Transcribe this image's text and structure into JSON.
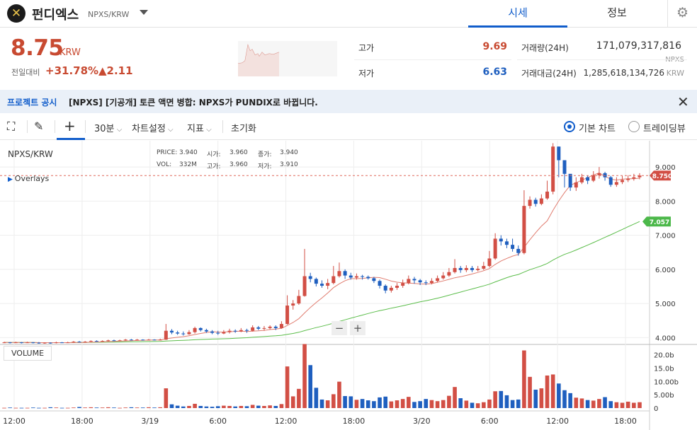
{
  "header": {
    "coin_name": "펀디엑스",
    "pair": "NPXS/KRW",
    "tabs": [
      "시세",
      "정보"
    ]
  },
  "ticker": {
    "price": "8.75",
    "unit": "KRW",
    "change_label": "전일대비",
    "change_pct": "+31.78%",
    "change_amt": "▲2.11"
  },
  "stats": {
    "high_label": "고가",
    "high": "9.69",
    "low_label": "저가",
    "low": "6.63",
    "vol_label": "거래량(24H)",
    "vol": "171,079,317,816",
    "vol_unit": "NPXS",
    "amount_label": "거래대금(24H)",
    "amount": "1,285,618,134,726",
    "amount_unit": "KRW"
  },
  "notice": {
    "head": "프로젝트 공시",
    "text": "[NPXS] [기공개] 토큰 액면 병합: NPXS가 PUNDIX로 바뀝니다."
  },
  "toolbar": {
    "interval": "30분",
    "chart_settings": "차트설정",
    "indicators": "지표",
    "reset": "초기화",
    "basic_chart": "기본 차트",
    "trading_view": "트레이딩뷰"
  },
  "colors": {
    "up": "#d24f45",
    "down": "#1f5fbf",
    "accent": "#115dcb",
    "ma_short": "#e07c6f",
    "ma_long": "#5bbd4a"
  },
  "chart_info": {
    "symbol": "NPXS/KRW",
    "overlays": "Overlays",
    "ohlc_labels": [
      "PRICE:",
      "시가:",
      "종가:",
      "VOL:",
      "고가:",
      "저가:"
    ],
    "ohlc_values": [
      "3.940",
      "3.960",
      "3.940",
      "332M",
      "3.960",
      "3.910"
    ],
    "last_price_tag": "8.750",
    "ma_tag": "7.057",
    "volume_label": "VOLUME"
  },
  "chart_data": {
    "type": "candlestick",
    "price_ticks": [
      "9.000",
      "8.000",
      "7.000",
      "6.000",
      "5.000",
      "4.000"
    ],
    "volume_ticks": [
      "20.0b",
      "15.0b",
      "10.00b",
      "5.00b",
      "0"
    ],
    "time_ticks": [
      "12:00",
      "18:00",
      "3/19",
      "6:00",
      "12:00",
      "18:00",
      "3/20",
      "6:00",
      "12:00",
      "18:00"
    ],
    "price_range": [
      3.8,
      9.75
    ],
    "volume_range": [
      0,
      22
    ],
    "candles": [
      [
        3.86,
        3.86,
        3.88,
        3.84
      ],
      [
        3.86,
        3.85,
        3.87,
        3.83
      ],
      [
        3.85,
        3.86,
        3.88,
        3.84
      ],
      [
        3.86,
        3.85,
        3.87,
        3.83
      ],
      [
        3.85,
        3.86,
        3.88,
        3.84
      ],
      [
        3.86,
        3.85,
        3.87,
        3.83
      ],
      [
        3.85,
        3.84,
        3.87,
        3.82
      ],
      [
        3.84,
        3.85,
        3.86,
        3.82
      ],
      [
        3.85,
        3.84,
        3.86,
        3.82
      ],
      [
        3.84,
        3.86,
        3.88,
        3.83
      ],
      [
        3.86,
        3.85,
        3.87,
        3.84
      ],
      [
        3.85,
        3.86,
        3.88,
        3.84
      ],
      [
        3.86,
        3.88,
        3.9,
        3.85
      ],
      [
        3.88,
        3.87,
        3.9,
        3.86
      ],
      [
        3.87,
        3.88,
        3.9,
        3.86
      ],
      [
        3.88,
        3.9,
        3.92,
        3.87
      ],
      [
        3.9,
        3.89,
        3.92,
        3.88
      ],
      [
        3.89,
        3.9,
        3.92,
        3.88
      ],
      [
        3.9,
        3.92,
        3.94,
        3.89
      ],
      [
        3.92,
        3.91,
        3.94,
        3.9
      ],
      [
        3.91,
        3.92,
        3.94,
        3.9
      ],
      [
        3.92,
        3.94,
        3.96,
        3.91
      ],
      [
        3.94,
        3.93,
        3.96,
        3.92
      ],
      [
        3.93,
        3.94,
        3.96,
        3.92
      ],
      [
        3.94,
        3.93,
        3.95,
        3.92
      ],
      [
        3.93,
        3.94,
        3.96,
        3.92
      ],
      [
        3.94,
        3.93,
        3.95,
        3.92
      ],
      [
        3.93,
        3.94,
        3.97,
        3.92
      ],
      [
        3.94,
        4.2,
        4.4,
        3.93
      ],
      [
        4.2,
        4.15,
        4.25,
        4.1
      ],
      [
        4.15,
        4.12,
        4.2,
        4.08
      ],
      [
        4.12,
        4.1,
        4.18,
        4.06
      ],
      [
        4.1,
        4.16,
        4.22,
        4.08
      ],
      [
        4.16,
        4.28,
        4.32,
        4.12
      ],
      [
        4.28,
        4.22,
        4.3,
        4.18
      ],
      [
        4.22,
        4.18,
        4.26,
        4.14
      ],
      [
        4.18,
        4.14,
        4.22,
        4.1
      ],
      [
        4.14,
        4.12,
        4.2,
        4.08
      ],
      [
        4.12,
        4.16,
        4.22,
        4.1
      ],
      [
        4.16,
        4.2,
        4.26,
        4.12
      ],
      [
        4.2,
        4.18,
        4.24,
        4.14
      ],
      [
        4.18,
        4.22,
        4.28,
        4.16
      ],
      [
        4.22,
        4.2,
        4.26,
        4.14
      ],
      [
        4.2,
        4.3,
        4.36,
        4.18
      ],
      [
        4.3,
        4.26,
        4.34,
        4.22
      ],
      [
        4.26,
        4.28,
        4.34,
        4.2
      ],
      [
        4.28,
        4.32,
        4.36,
        4.24
      ],
      [
        4.32,
        4.28,
        4.36,
        4.22
      ],
      [
        4.28,
        4.4,
        4.48,
        4.26
      ],
      [
        4.4,
        4.94,
        5.24,
        4.38
      ],
      [
        4.94,
        5.0,
        5.1,
        4.82
      ],
      [
        5.0,
        5.22,
        5.4,
        4.96
      ],
      [
        5.22,
        5.8,
        6.6,
        5.2
      ],
      [
        5.8,
        5.72,
        5.9,
        5.62
      ],
      [
        5.72,
        5.58,
        5.76,
        5.5
      ],
      [
        5.58,
        5.52,
        5.68,
        5.46
      ],
      [
        5.52,
        5.6,
        5.72,
        5.42
      ],
      [
        5.6,
        5.8,
        6.1,
        5.56
      ],
      [
        5.8,
        5.95,
        6.2,
        5.76
      ],
      [
        5.95,
        5.82,
        6.0,
        5.72
      ],
      [
        5.82,
        5.76,
        5.9,
        5.7
      ],
      [
        5.76,
        5.8,
        5.88,
        5.7
      ],
      [
        5.8,
        5.78,
        5.84,
        5.7
      ],
      [
        5.78,
        5.74,
        5.82,
        5.7
      ],
      [
        5.74,
        5.66,
        5.78,
        5.6
      ],
      [
        5.66,
        5.52,
        5.7,
        5.44
      ],
      [
        5.52,
        5.38,
        5.56,
        5.3
      ],
      [
        5.38,
        5.46,
        5.52,
        5.32
      ],
      [
        5.46,
        5.52,
        5.6,
        5.4
      ],
      [
        5.52,
        5.6,
        5.7,
        5.46
      ],
      [
        5.6,
        5.72,
        5.82,
        5.56
      ],
      [
        5.72,
        5.68,
        5.78,
        5.58
      ],
      [
        5.68,
        5.62,
        5.72,
        5.54
      ],
      [
        5.62,
        5.6,
        5.68,
        5.54
      ],
      [
        5.6,
        5.66,
        5.74,
        5.56
      ],
      [
        5.66,
        5.74,
        5.82,
        5.62
      ],
      [
        5.74,
        5.82,
        5.92,
        5.7
      ],
      [
        5.82,
        5.92,
        6.04,
        5.78
      ],
      [
        5.92,
        6.04,
        6.3,
        5.88
      ],
      [
        6.04,
        5.98,
        6.1,
        5.9
      ],
      [
        5.98,
        6.04,
        6.12,
        5.92
      ],
      [
        6.04,
        5.98,
        6.1,
        5.92
      ],
      [
        5.98,
        6.02,
        6.1,
        5.94
      ],
      [
        6.02,
        6.1,
        6.22,
        5.98
      ],
      [
        6.1,
        6.32,
        6.54,
        6.06
      ],
      [
        6.32,
        6.9,
        7.06,
        6.28
      ],
      [
        6.9,
        6.82,
        7.0,
        6.7
      ],
      [
        6.82,
        6.72,
        6.9,
        6.62
      ],
      [
        6.72,
        6.6,
        6.9,
        6.52
      ],
      [
        6.6,
        6.48,
        6.7,
        6.4
      ],
      [
        6.48,
        7.86,
        8.32,
        6.44
      ],
      [
        7.86,
        8.04,
        8.14,
        7.78
      ],
      [
        8.04,
        7.92,
        8.1,
        7.84
      ],
      [
        7.92,
        8.08,
        8.2,
        7.88
      ],
      [
        8.08,
        8.28,
        8.6,
        8.04
      ],
      [
        8.28,
        9.6,
        9.7,
        8.2
      ],
      [
        9.6,
        9.2,
        9.6,
        8.7
      ],
      [
        9.2,
        8.8,
        9.0,
        8.4
      ],
      [
        8.8,
        8.4,
        8.7,
        8.3
      ],
      [
        8.4,
        8.55,
        8.7,
        8.3
      ],
      [
        8.55,
        8.7,
        8.8,
        8.5
      ],
      [
        8.7,
        8.6,
        8.75,
        8.5
      ],
      [
        8.6,
        8.76,
        8.88,
        8.56
      ],
      [
        8.76,
        8.82,
        9.0,
        8.66
      ],
      [
        8.82,
        8.7,
        8.86,
        8.6
      ],
      [
        8.7,
        8.48,
        8.74,
        8.42
      ],
      [
        8.48,
        8.56,
        8.7,
        8.42
      ],
      [
        8.56,
        8.62,
        8.74,
        8.5
      ],
      [
        8.62,
        8.66,
        8.76,
        8.56
      ],
      [
        8.66,
        8.7,
        8.8,
        8.6
      ],
      [
        8.7,
        8.75,
        8.82,
        8.64
      ]
    ],
    "volumes": [
      0.1,
      0.2,
      0.1,
      0.1,
      0.1,
      0.2,
      0.1,
      0.1,
      0.3,
      0.2,
      0.1,
      0.1,
      0.2,
      0.4,
      0.2,
      0.3,
      0.2,
      0.2,
      0.3,
      0.2,
      0.1,
      0.2,
      0.3,
      0.2,
      0.2,
      0.3,
      0.2,
      0.3,
      7.4,
      1.4,
      0.9,
      0.6,
      0.8,
      1.6,
      0.8,
      0.6,
      0.5,
      0.7,
      0.9,
      0.8,
      0.6,
      0.8,
      0.7,
      1.2,
      0.9,
      0.8,
      1.0,
      0.8,
      1.5,
      15.6,
      4.4,
      7.2,
      24.0,
      16.1,
      7.6,
      3.2,
      2.9,
      5.2,
      9.9,
      4.5,
      4.4,
      3.1,
      3.4,
      2.9,
      2.6,
      4.0,
      4.3,
      2.5,
      2.9,
      3.4,
      4.2,
      2.3,
      2.6,
      3.4,
      3.0,
      2.6,
      3.0,
      4.6,
      7.9,
      3.7,
      2.8,
      2.0,
      1.8,
      2.2,
      3.2,
      6.3,
      6.4,
      4.8,
      3.0,
      3.2,
      21.6,
      11.7,
      6.9,
      7.4,
      12.2,
      12.6,
      9.2,
      6.7,
      5.6,
      3.9,
      3.6,
      3.0,
      2.8,
      3.4,
      4.1,
      2.6,
      2.2,
      2.0,
      2.4,
      2.0,
      2.2
    ]
  }
}
